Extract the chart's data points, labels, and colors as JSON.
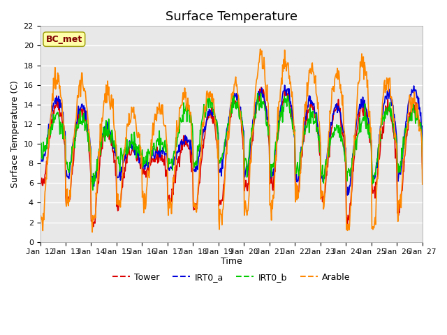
{
  "title": "Surface Temperature",
  "ylabel": "Surface Temperature (C)",
  "xlabel": "Time",
  "ylim": [
    0,
    22
  ],
  "ytick_values": [
    0,
    2,
    4,
    6,
    8,
    10,
    12,
    14,
    16,
    18,
    20,
    22
  ],
  "xtick_labels": [
    "Jan 12",
    "Jan 13",
    "Jan 14",
    "Jan 15",
    "Jan 16",
    "Jan 17",
    "Jan 18",
    "Jan 19",
    "Jan 20",
    "Jan 21",
    "Jan 22",
    "Jan 23",
    "Jan 24",
    "Jan 25",
    "Jan 26",
    "Jan 27"
  ],
  "colors": {
    "Tower": "#dd0000",
    "IRT0_a": "#0000dd",
    "IRT0_b": "#00cc00",
    "Arable": "#ff8800"
  },
  "annotation_text": "BC_met",
  "annotation_color": "#800000",
  "annotation_bg": "#ffffaa",
  "annotation_edge": "#999900",
  "fig_bg": "#ffffff",
  "plot_bg": "#e8e8e8",
  "grid_color": "#ffffff",
  "title_fontsize": 13,
  "axis_fontsize": 9,
  "tick_fontsize": 8,
  "linewidth": 1.2
}
